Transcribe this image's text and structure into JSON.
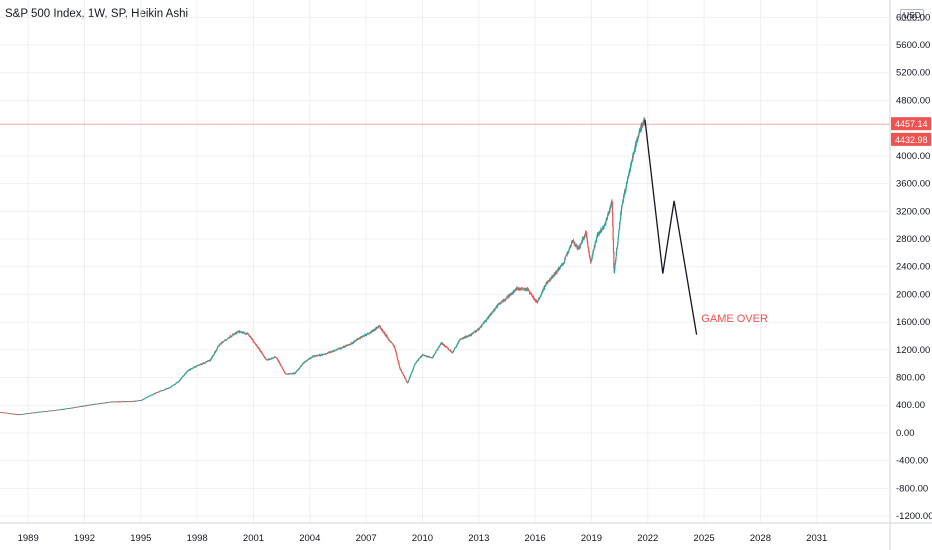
{
  "header": {
    "title": "S&P 500 Index, 1W, SP, Heikin Ashi",
    "currency": "USD"
  },
  "colors": {
    "up": "#26a69a",
    "down": "#ef5350",
    "projection": "#131722",
    "price_line": "#f7a9a7",
    "label_bg": "#ef5350",
    "annotation": "#ef5350"
  },
  "chart_data": {
    "type": "candlestick",
    "title": "S&P 500 Index, 1W, SP, Heikin Ashi",
    "xlabel": "",
    "ylabel": "",
    "xlim": [
      1987.5,
      2034.9
    ],
    "ylim": [
      -1300,
      6250
    ],
    "grid": true,
    "y_ticks": [
      "6000.00",
      "5600.00",
      "5200.00",
      "4800.00",
      "4000.00",
      "3600.00",
      "3200.00",
      "2800.00",
      "2400.00",
      "2000.00",
      "1600.00",
      "1200.00",
      "800.00",
      "400.00",
      "0.00",
      "-400.00",
      "-800.00",
      "-1200.00"
    ],
    "y_tick_values": [
      6000,
      5600,
      5200,
      4800,
      4000,
      3600,
      3200,
      2800,
      2400,
      2000,
      1600,
      1200,
      800,
      400,
      0,
      -400,
      -800,
      -1200
    ],
    "x_ticks": [
      "1989",
      "1992",
      "1995",
      "1998",
      "2001",
      "2004",
      "2007",
      "2010",
      "2013",
      "2016",
      "2019",
      "2022",
      "2025",
      "2028",
      "2031"
    ],
    "x_tick_values": [
      1989,
      1992,
      1995,
      1998,
      2001,
      2004,
      2007,
      2010,
      2013,
      2016,
      2019,
      2022,
      2025,
      2028,
      2031
    ],
    "price_series": [
      [
        1987.5,
        300
      ],
      [
        1988.5,
        265
      ],
      [
        1989.5,
        300
      ],
      [
        1990.5,
        330
      ],
      [
        1991.5,
        370
      ],
      [
        1992.5,
        415
      ],
      [
        1993.5,
        450
      ],
      [
        1994.5,
        455
      ],
      [
        1995.0,
        470
      ],
      [
        1995.5,
        540
      ],
      [
        1996.0,
        600
      ],
      [
        1996.5,
        650
      ],
      [
        1997.0,
        740
      ],
      [
        1997.5,
        900
      ],
      [
        1998.0,
        970
      ],
      [
        1998.7,
        1050
      ],
      [
        1999.2,
        1280
      ],
      [
        1999.8,
        1400
      ],
      [
        2000.2,
        1460
      ],
      [
        2000.7,
        1430
      ],
      [
        2001.2,
        1250
      ],
      [
        2001.7,
        1050
      ],
      [
        2002.2,
        1100
      ],
      [
        2002.7,
        850
      ],
      [
        2003.2,
        860
      ],
      [
        2003.7,
        1020
      ],
      [
        2004.2,
        1110
      ],
      [
        2004.7,
        1130
      ],
      [
        2005.2,
        1180
      ],
      [
        2005.7,
        1230
      ],
      [
        2006.2,
        1290
      ],
      [
        2006.7,
        1380
      ],
      [
        2007.2,
        1450
      ],
      [
        2007.7,
        1540
      ],
      [
        2008.2,
        1350
      ],
      [
        2008.5,
        1250
      ],
      [
        2008.8,
        930
      ],
      [
        2009.2,
        720
      ],
      [
        2009.6,
        1000
      ],
      [
        2010.0,
        1130
      ],
      [
        2010.5,
        1080
      ],
      [
        2011.0,
        1300
      ],
      [
        2011.6,
        1160
      ],
      [
        2012.0,
        1350
      ],
      [
        2012.6,
        1420
      ],
      [
        2013.0,
        1500
      ],
      [
        2013.6,
        1700
      ],
      [
        2014.0,
        1840
      ],
      [
        2014.6,
        1980
      ],
      [
        2015.0,
        2080
      ],
      [
        2015.6,
        2070
      ],
      [
        2016.1,
        1880
      ],
      [
        2016.6,
        2160
      ],
      [
        2017.0,
        2280
      ],
      [
        2017.5,
        2450
      ],
      [
        2018.0,
        2780
      ],
      [
        2018.3,
        2650
      ],
      [
        2018.7,
        2900
      ],
      [
        2018.95,
        2450
      ],
      [
        2019.3,
        2850
      ],
      [
        2019.7,
        3000
      ],
      [
        2020.1,
        3350
      ],
      [
        2020.2,
        2300
      ],
      [
        2020.6,
        3250
      ],
      [
        2020.95,
        3700
      ],
      [
        2021.3,
        4100
      ],
      [
        2021.6,
        4400
      ],
      [
        2021.85,
        4520
      ]
    ],
    "projection": [
      [
        2021.85,
        4520
      ],
      [
        2022.8,
        2300
      ],
      [
        2023.4,
        3350
      ],
      [
        2024.6,
        1420
      ]
    ],
    "current_prices": [
      "4457.14",
      "4432.98"
    ],
    "current_price_values": [
      4457.14,
      4432.98
    ],
    "annotations": [
      {
        "text": "GAME OVER",
        "x": 2024.85,
        "y": 1600
      }
    ]
  }
}
